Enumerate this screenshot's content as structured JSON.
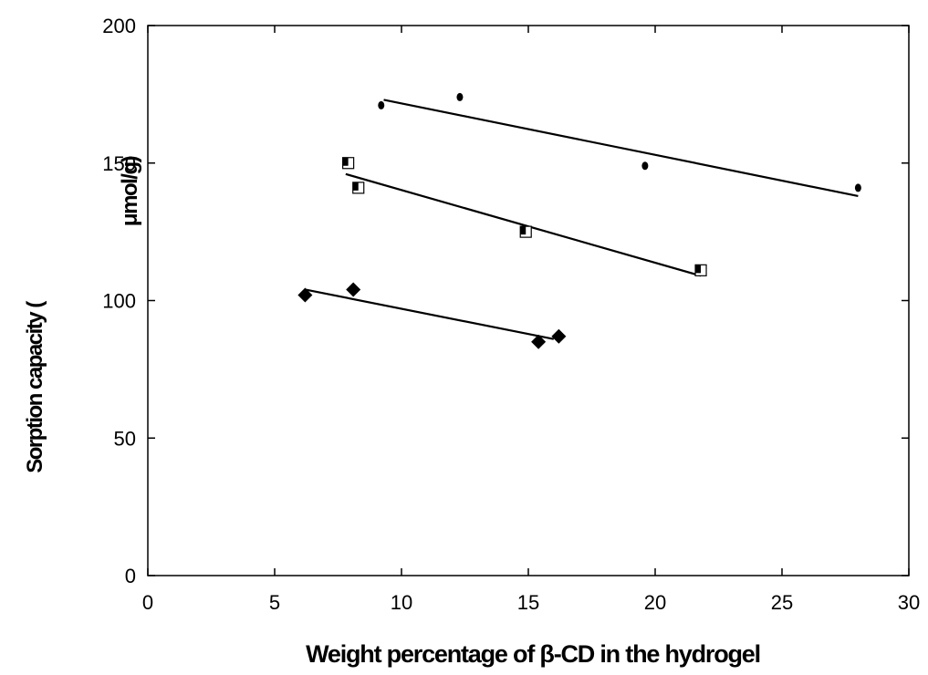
{
  "chart_data": {
    "type": "scatter",
    "title": "",
    "xlabel": "Weight percentage of β-CD in the hydrogel",
    "ylabel_left": "Sorption capacity (",
    "ylabel_right": "μmol/g)",
    "xlim": [
      0,
      30
    ],
    "ylim": [
      0,
      200
    ],
    "x_ticks": [
      "0",
      "5",
      "10",
      "15",
      "20",
      "25",
      "30"
    ],
    "y_ticks": [
      "0",
      "50",
      "100",
      "150",
      "200"
    ],
    "grid": false,
    "legend": "none",
    "series": [
      {
        "marker": "circle",
        "points": [
          [
            9.2,
            171
          ],
          [
            12.3,
            174
          ],
          [
            19.6,
            149
          ],
          [
            28.0,
            141
          ]
        ],
        "fit": [
          [
            9.3,
            173
          ],
          [
            28.0,
            138
          ]
        ]
      },
      {
        "marker": "half-filled-square",
        "points": [
          [
            7.9,
            150
          ],
          [
            8.3,
            141
          ],
          [
            14.9,
            125
          ],
          [
            21.8,
            111
          ]
        ],
        "fit": [
          [
            7.8,
            146
          ],
          [
            21.8,
            109
          ]
        ]
      },
      {
        "marker": "diamond",
        "points": [
          [
            6.2,
            102
          ],
          [
            8.1,
            104
          ],
          [
            15.4,
            85
          ],
          [
            16.2,
            87
          ]
        ],
        "fit": [
          [
            6.2,
            104
          ],
          [
            16.0,
            86
          ]
        ]
      }
    ]
  }
}
